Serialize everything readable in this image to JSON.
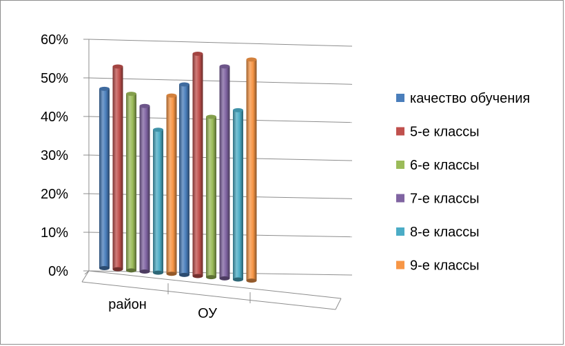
{
  "chart_data": {
    "type": "bar",
    "style": "3d-cylinder",
    "title": "",
    "xlabel": "",
    "ylabel": "",
    "categories": [
      "район",
      "ОУ"
    ],
    "y_ticks": [
      "0%",
      "10%",
      "20%",
      "30%",
      "40%",
      "50%",
      "60%"
    ],
    "ylim": [
      0,
      60
    ],
    "grid": true,
    "legend_position": "right",
    "series": [
      {
        "name": "качество обучения",
        "color": "#4a7ebb",
        "values": [
          47,
          49
        ]
      },
      {
        "name": "5-е классы",
        "color": "#c0504d",
        "values": [
          53,
          57
        ]
      },
      {
        "name": "6-е классы",
        "color": "#9bbb59",
        "values": [
          46,
          41
        ]
      },
      {
        "name": "7-е классы",
        "color": "#8064a2",
        "values": [
          43,
          54
        ]
      },
      {
        "name": "8-е классы",
        "color": "#4bacc6",
        "values": [
          37,
          43
        ]
      },
      {
        "name": "9-е классы",
        "color": "#f79646",
        "values": [
          46,
          56
        ]
      }
    ]
  }
}
